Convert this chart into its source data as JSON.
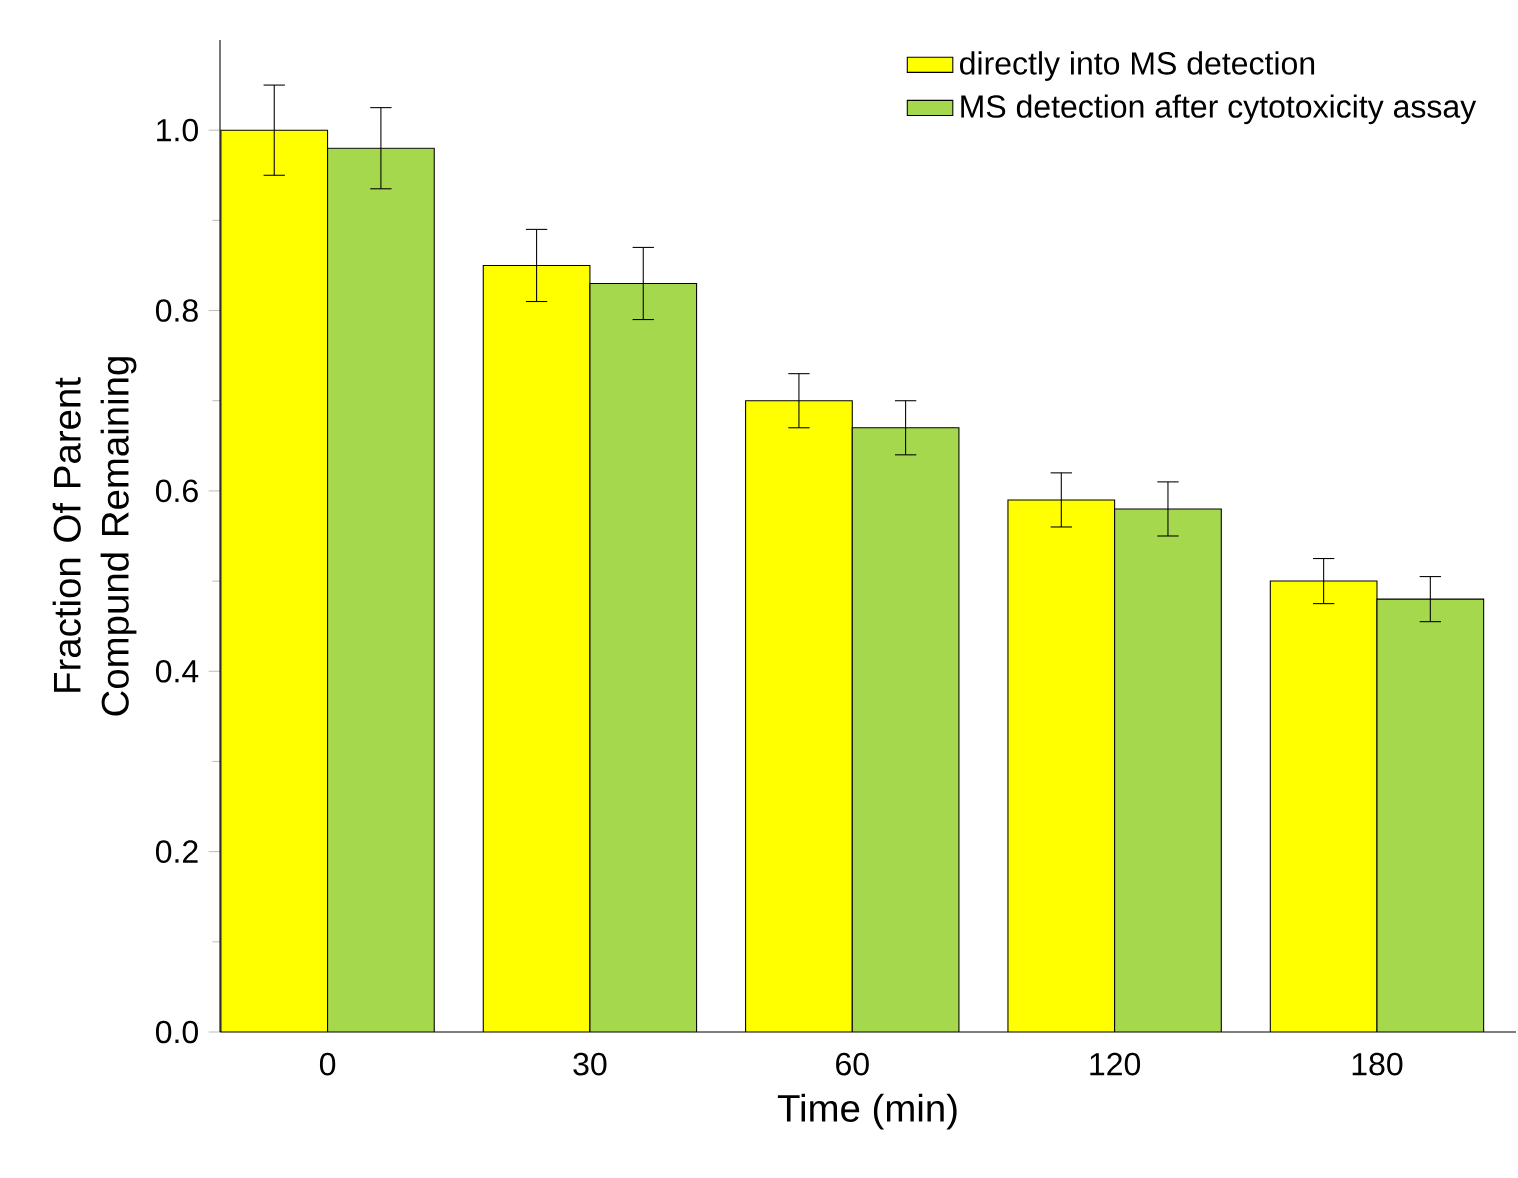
{
  "chart_data": {
    "type": "bar",
    "xlabel": "Time (min)",
    "ylabel": "Fraction Of Parent Compund Remaining",
    "categories": [
      "0",
      "30",
      "60",
      "120",
      "180"
    ],
    "series": [
      {
        "name": "directly into MS detection",
        "color": "#ffff00",
        "values": [
          1.0,
          0.85,
          0.7,
          0.59,
          0.5
        ],
        "errors": [
          0.05,
          0.04,
          0.03,
          0.03,
          0.025
        ]
      },
      {
        "name": "MS detection after cytotoxicity assay",
        "color": "#a6d84e",
        "values": [
          0.98,
          0.83,
          0.67,
          0.58,
          0.48
        ],
        "errors": [
          0.045,
          0.04,
          0.03,
          0.03,
          0.025
        ]
      }
    ],
    "ylim": [
      0,
      1.1
    ],
    "yticks": [
      {
        "value": 0,
        "label": "0.0"
      },
      0.2,
      0.4,
      0.6,
      0.8,
      {
        "value": 1,
        "label": "1.0"
      }
    ],
    "legend": "top right",
    "grid": false
  }
}
